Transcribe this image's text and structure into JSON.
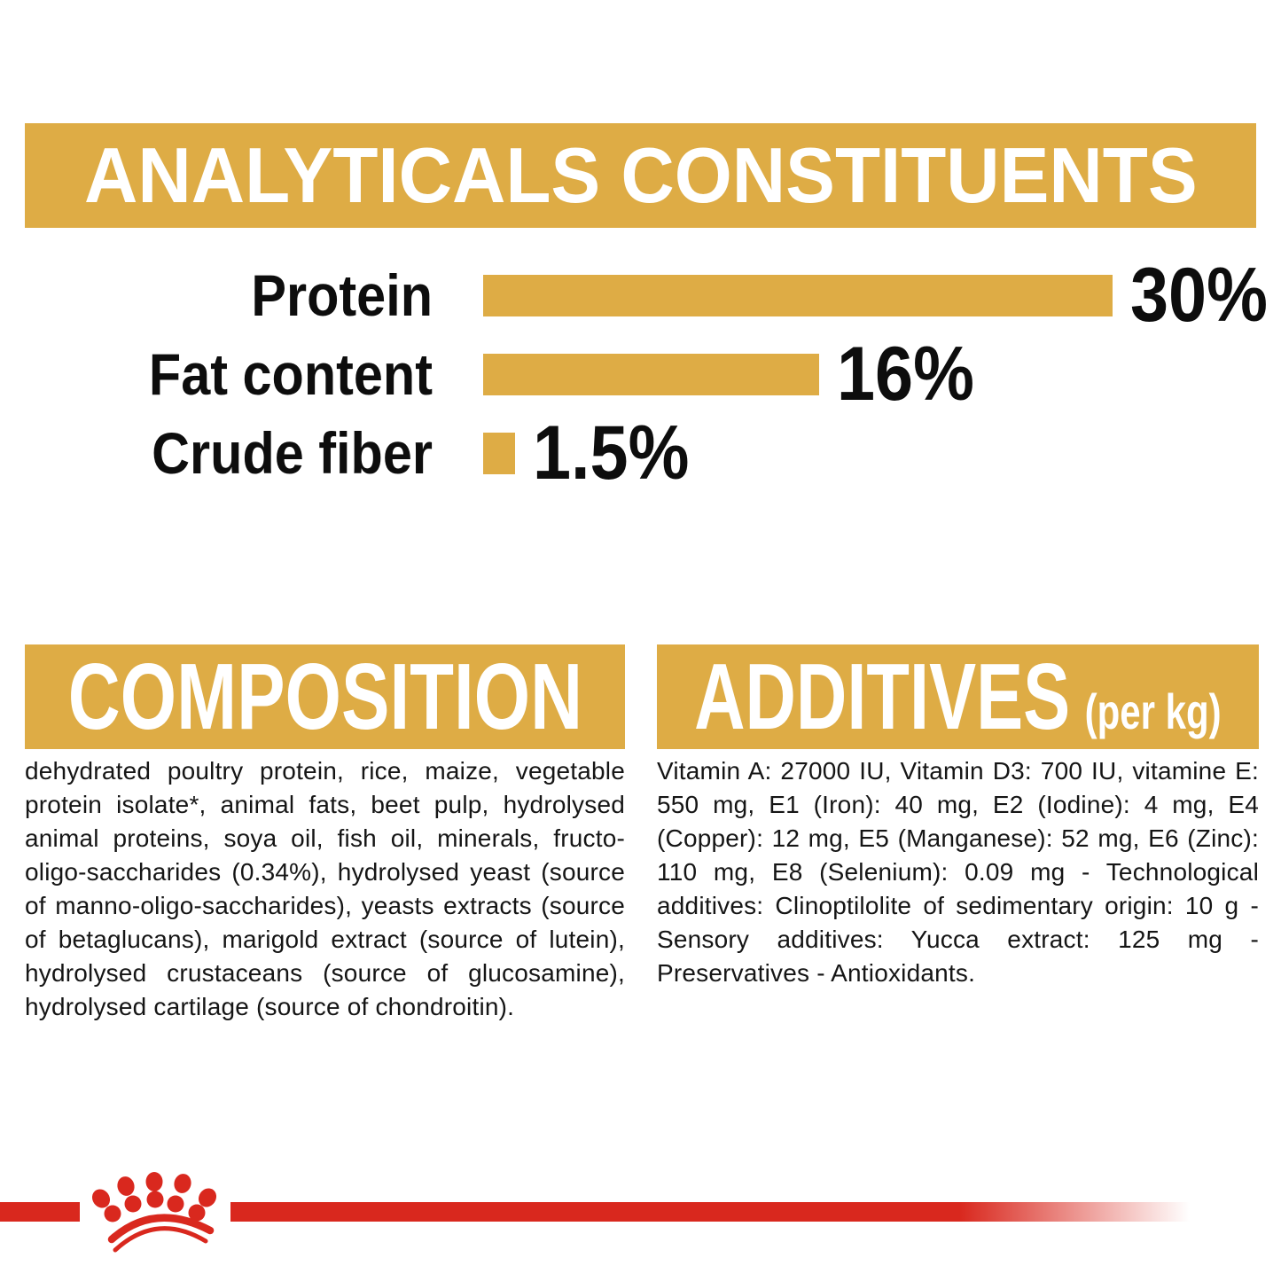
{
  "colors": {
    "gold": "#DEAC45",
    "red": "#D9281E",
    "ink": "#111111",
    "banner_text": "#ffffff"
  },
  "analyticals": {
    "title": "ANALYTICALS CONSTITUENTS"
  },
  "chart_data": {
    "type": "bar",
    "orientation": "horizontal",
    "title": "ANALYTICALS CONSTITUENTS",
    "categories": [
      "Protein",
      "Fat content",
      "Crude fiber"
    ],
    "values": [
      30,
      16,
      1.5
    ],
    "value_labels": [
      "30%",
      "16%",
      "1.5%"
    ],
    "unit": "%",
    "xlim": [
      0,
      30
    ],
    "grid": false,
    "legend": false,
    "bar_color_key": "gold",
    "value_label_position": "right-of-bar"
  },
  "composition": {
    "title": "COMPOSITION",
    "body": "dehydrated poultry protein, rice, maize, vegetable protein isolate*, animal fats, beet pulp, hydrolysed animal proteins, soya oil, fish oil, minerals, fructo-oligo-saccharides (0.34%), hydrolysed yeast (source of manno-oligo-saccharides), yeasts extracts (source of betaglucans), marigold extract (source of lutein), hydrolysed crustaceans (source of glucosamine), hydrolysed cartilage (source of chondroitin)."
  },
  "additives": {
    "title": "ADDITIVES",
    "title_suffix": "(per kg)",
    "body": "Vitamin A: 27000 IU, Vitamin D3: 700 IU, vitamine E: 550 mg, E1 (Iron): 40 mg, E2 (Iodine): 4 mg, E4 (Copper): 12 mg, E5 (Manganese): 52 mg, E6 (Zinc): 110 mg, E8 (Selenium): 0.09 mg - Technological additives: Clinoptilolite of sedimentary origin: 10 g - Sensory additives: Yucca extract: 125 mg - Preservatives - Antioxidants."
  },
  "footer": {
    "brand_logo": "royal-canin-crown"
  }
}
